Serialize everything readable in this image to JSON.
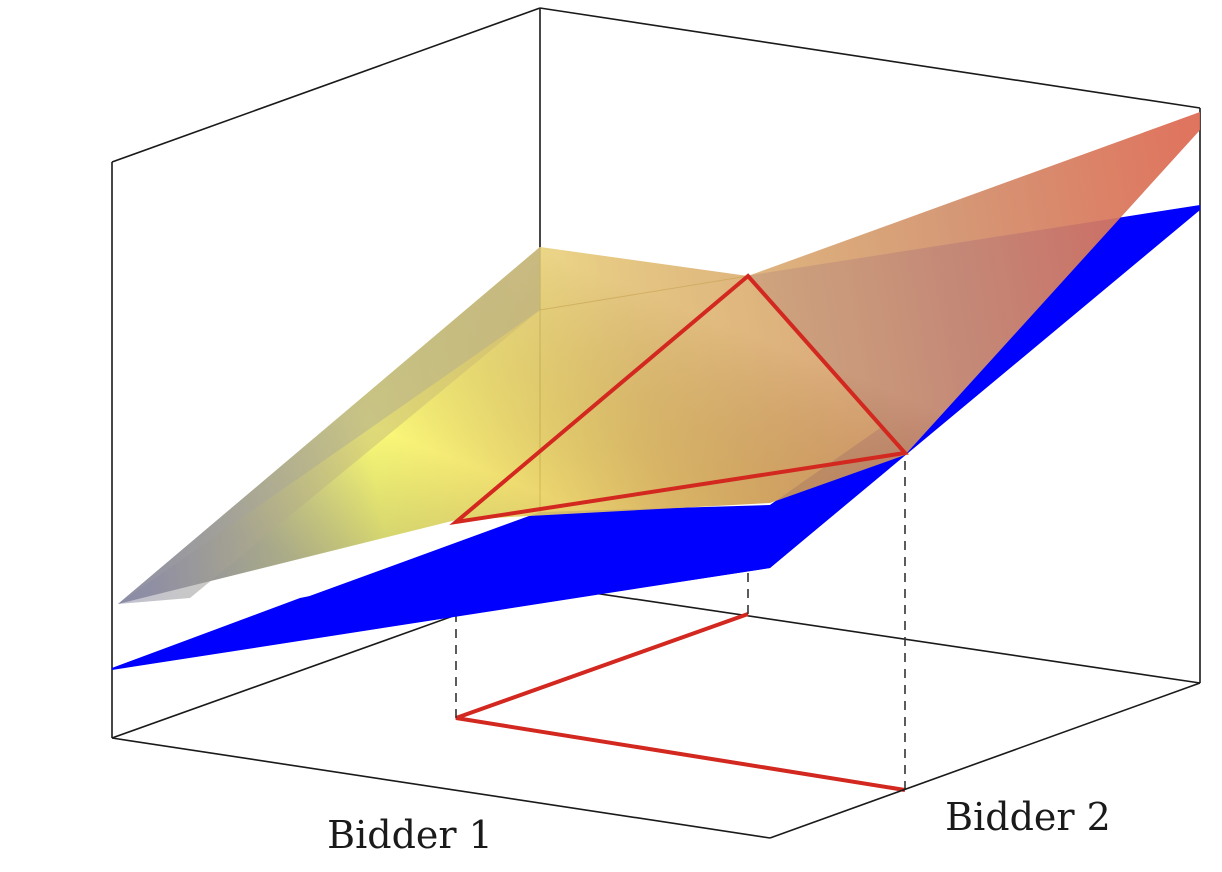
{
  "figure": {
    "bidder1_label": "Bidder 1",
    "bidder2_label": "Bidder 2"
  },
  "colors": {
    "background": "#ffffff",
    "box_edge": "#1a1a1a",
    "lower_surface": "#0000ff",
    "upper_surface_gradient": [
      "#ffff66",
      "#e8b24a",
      "#c75d35",
      "#d54a2a"
    ],
    "upper_surface_dark_edge": "#8e8ea3",
    "region_outline": "#d2281f",
    "projection_dash": "#333333"
  }
}
